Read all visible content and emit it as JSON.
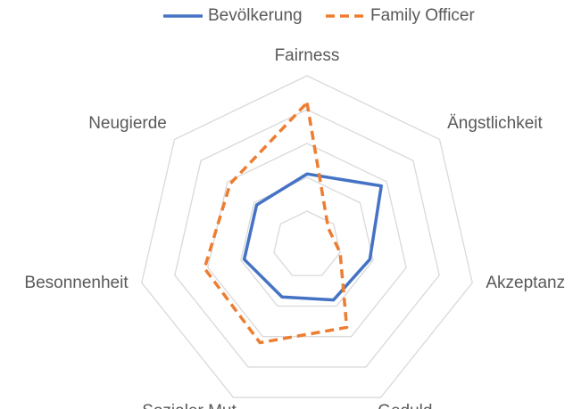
{
  "chart_data": {
    "type": "radar",
    "categories": [
      "Fairness",
      "Ängstlichkeit",
      "Akzeptanz",
      "Geduld",
      "Sozialer Mut",
      "Besonnenheit",
      "Neugierde"
    ],
    "series": [
      {
        "name": "Bevölkerung",
        "color": "#4472c4",
        "dashed": false,
        "values": [
          2.1,
          2.8,
          1.9,
          1.8,
          1.7,
          1.9,
          1.9
        ]
      },
      {
        "name": "Family Officer",
        "color": "#ed7d31",
        "dashed": true,
        "values": [
          4.2,
          0.8,
          1.0,
          2.7,
          3.2,
          3.1,
          2.9
        ]
      }
    ],
    "ylim": [
      0,
      5
    ],
    "yticks": [
      0,
      1,
      2,
      3,
      4,
      5
    ],
    "grid": true,
    "legend": "top"
  }
}
